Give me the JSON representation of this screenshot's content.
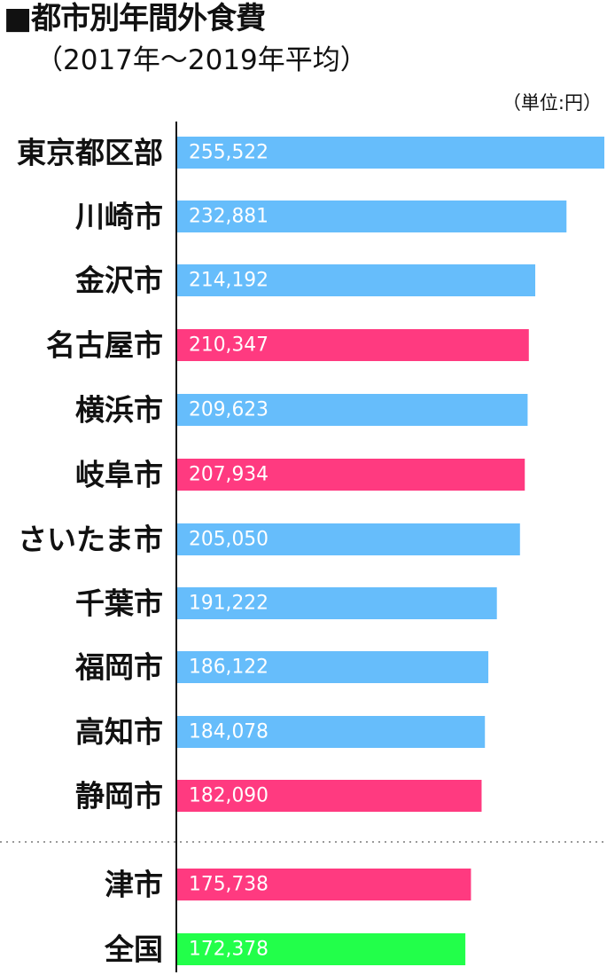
{
  "chart_data": {
    "type": "bar",
    "orientation": "horizontal",
    "title": "■都市別年間外食費",
    "subtitle": "（2017年～2019年平均）",
    "unit": "（単位:円）",
    "xlim": [
      0,
      255522
    ],
    "grid": false,
    "colors": {
      "default": "#66bdfb",
      "highlight": "#ff3a80",
      "national": "#22ff4a"
    },
    "bars": [
      {
        "category": "東京都区部",
        "value": 255522,
        "value_label": "255,522",
        "color": "default"
      },
      {
        "category": "川崎市",
        "value": 232881,
        "value_label": "232,881",
        "color": "default"
      },
      {
        "category": "金沢市",
        "value": 214192,
        "value_label": "214,192",
        "color": "default"
      },
      {
        "category": "名古屋市",
        "value": 210347,
        "value_label": "210,347",
        "color": "highlight"
      },
      {
        "category": "横浜市",
        "value": 209623,
        "value_label": "209,623",
        "color": "default"
      },
      {
        "category": "岐阜市",
        "value": 207934,
        "value_label": "207,934",
        "color": "highlight"
      },
      {
        "category": "さいたま市",
        "value": 205050,
        "value_label": "205,050",
        "color": "default"
      },
      {
        "category": "千葉市",
        "value": 191222,
        "value_label": "191,222",
        "color": "default"
      },
      {
        "category": "福岡市",
        "value": 186122,
        "value_label": "186,122",
        "color": "default"
      },
      {
        "category": "高知市",
        "value": 184078,
        "value_label": "184,078",
        "color": "default"
      },
      {
        "category": "静岡市",
        "value": 182090,
        "value_label": "182,090",
        "color": "highlight"
      },
      {
        "category": "津市",
        "value": 175738,
        "value_label": "175,738",
        "color": "highlight"
      },
      {
        "category": "全国",
        "value": 172378,
        "value_label": "172,378",
        "color": "national"
      }
    ]
  }
}
